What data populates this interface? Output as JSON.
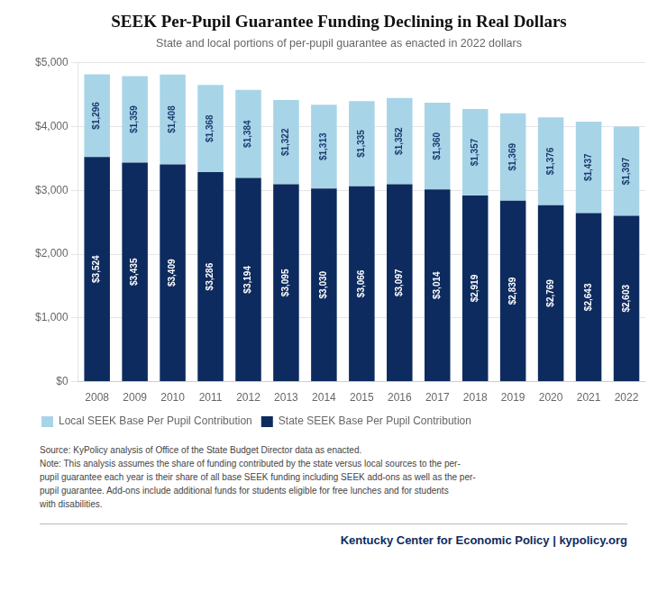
{
  "chart_data": {
    "type": "bar",
    "title": "SEEK Per-Pupil Guarantee Funding Declining in Real Dollars",
    "subtitle": "State and local portions of per-pupil guarantee as enacted in 2022 dollars",
    "categories": [
      "2008",
      "2009",
      "2010",
      "2011",
      "2012",
      "2013",
      "2014",
      "2015",
      "2016",
      "2017",
      "2018",
      "2019",
      "2020",
      "2021",
      "2022"
    ],
    "series": [
      {
        "name": "State SEEK Base Per Pupil Contribution",
        "color": "#0d2b5e",
        "values": [
          3524,
          3435,
          3409,
          3286,
          3194,
          3095,
          3030,
          3066,
          3097,
          3014,
          2919,
          2839,
          2769,
          2643,
          2603
        ],
        "value_labels": [
          "$3,524",
          "$3,435",
          "$3,409",
          "$3,286",
          "$3,194",
          "$3,095",
          "$3,030",
          "$3,066",
          "$3,097",
          "$3,014",
          "$2,919",
          "$2,839",
          "$2,769",
          "$2,643",
          "$2,603"
        ]
      },
      {
        "name": "Local SEEK Base Per Pupil Contribution",
        "color": "#a8d4e8",
        "values": [
          1296,
          1359,
          1408,
          1368,
          1384,
          1322,
          1313,
          1335,
          1352,
          1360,
          1357,
          1369,
          1376,
          1437,
          1397
        ],
        "value_labels": [
          "$1,296",
          "$1,359",
          "$1,408",
          "$1,368",
          "$1,384",
          "$1,322",
          "$1,313",
          "$1,335",
          "$1,352",
          "$1,360",
          "$1,357",
          "$1,369",
          "$1,376",
          "$1,437",
          "$1,397"
        ]
      }
    ],
    "stacked": true,
    "data_labels": true,
    "ylim": [
      0,
      5000
    ],
    "yticks": [
      {
        "value": 0,
        "label": "$0"
      },
      {
        "value": 1000,
        "label": "$1,000"
      },
      {
        "value": 2000,
        "label": "$2,000"
      },
      {
        "value": 3000,
        "label": "$3,000"
      },
      {
        "value": 4000,
        "label": "$4,000"
      },
      {
        "value": 5000,
        "label": "$5,000"
      }
    ],
    "grid": true,
    "legend": "bottom",
    "source": "Source: KyPolicy analysis of Office of the State Budget Director data as enacted.\nNote: This analysis assumes the share of funding contributed by the state versus local sources to the per-\npupil guarantee each year is their share of all base SEEK funding including SEEK add-ons as well as the per-\npupil guarantee. Add-ons include additional funds for students eligible for free lunches and for students\nwith disabilities.",
    "footer": "Kentucky Center for Economic Policy | kypolicy.org"
  }
}
